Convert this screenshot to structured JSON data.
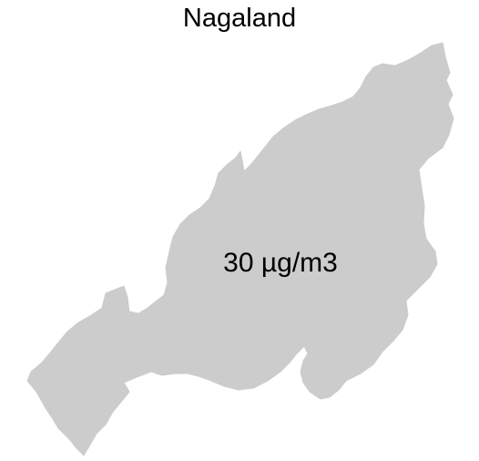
{
  "title": "Nagaland",
  "region": {
    "name": "Nagaland",
    "value_label": "30 µg/m3",
    "fill_color": "#cccccc"
  }
}
